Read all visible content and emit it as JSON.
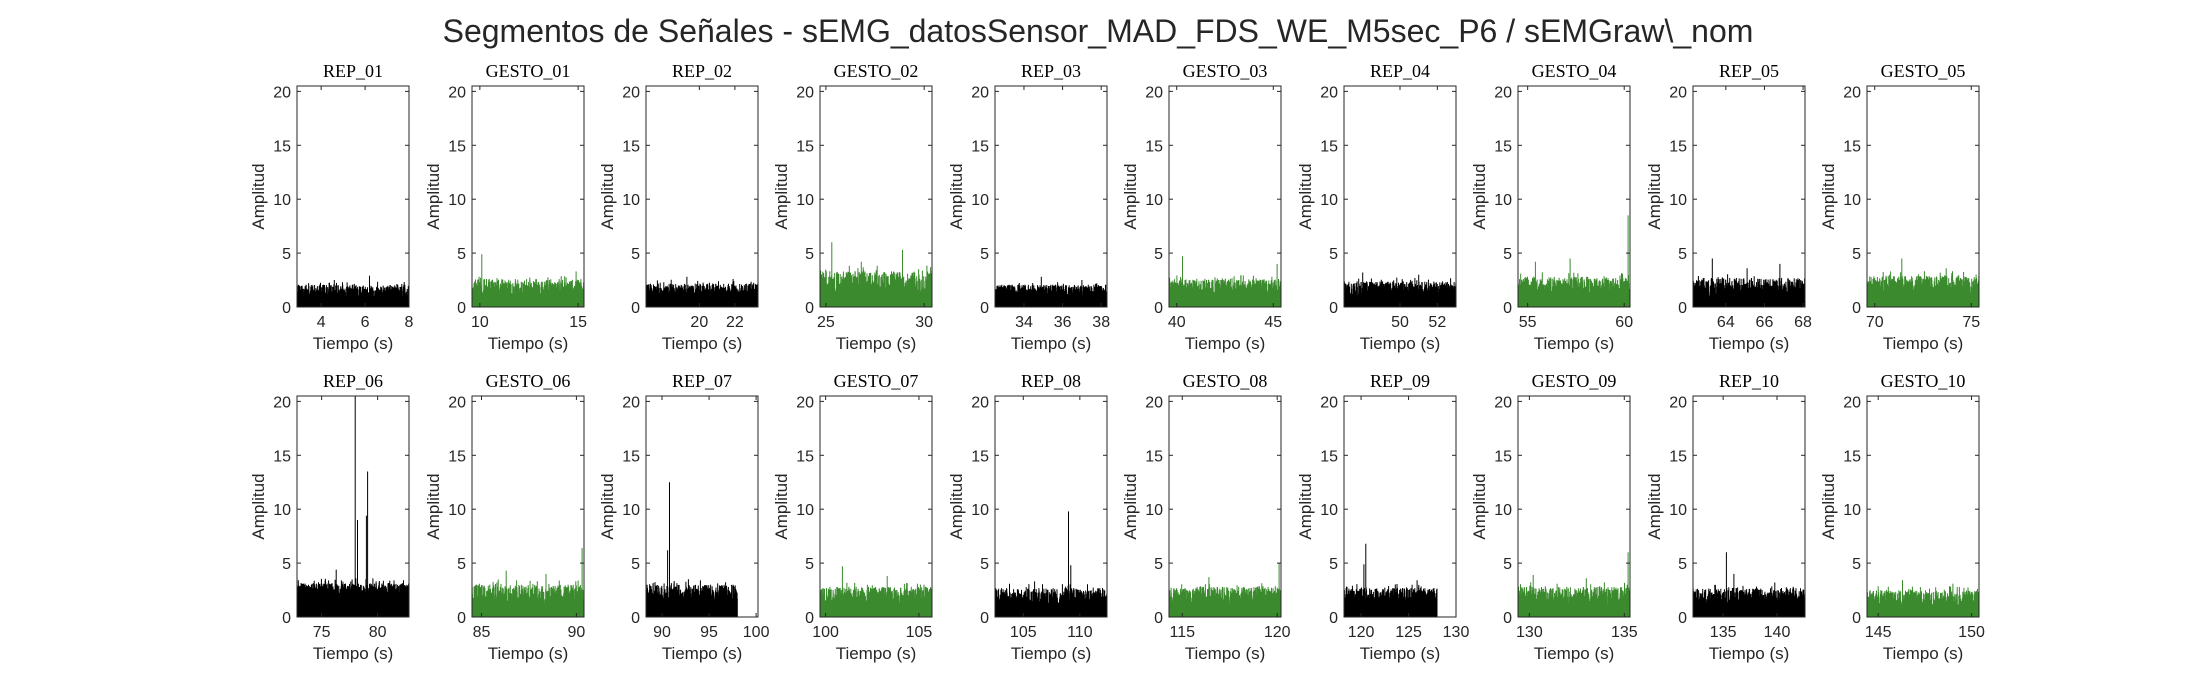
{
  "figure": {
    "title": "Segmentos de Señales - sEMG_datosSensor_MAD_FDS_WE_M5sec_P6 / sEMGraw\\_nom"
  },
  "colors": {
    "rep": "#000000",
    "gesto": "#3b8a2e",
    "axis": "#262626"
  },
  "chart_data": [
    {
      "type": "line",
      "title": "REP_01",
      "xlabel": "Tiempo (s)",
      "ylabel": "Amplitud",
      "xlim": [
        2.9,
        8.0
      ],
      "ylim": [
        0,
        20.5
      ],
      "xticks": [
        4,
        6,
        8
      ],
      "yticks": [
        0,
        5,
        10,
        15,
        20
      ],
      "color": "#000000",
      "sampling_step": 0.01,
      "signal": {
        "base": 1.3,
        "noise": 0.7,
        "end": 8.0,
        "spikes": [
          [
            6.2,
            2.9
          ],
          [
            4.6,
            2.5
          ]
        ]
      }
    },
    {
      "type": "line",
      "title": "GESTO_01",
      "xlabel": "Tiempo (s)",
      "ylabel": "Amplitud",
      "xlim": [
        9.6,
        15.3
      ],
      "ylim": [
        0,
        20.5
      ],
      "xticks": [
        10,
        15
      ],
      "yticks": [
        0,
        5,
        10,
        15,
        20
      ],
      "color": "#3b8a2e",
      "sampling_step": 0.01,
      "signal": {
        "base": 1.6,
        "noise": 0.9,
        "end": 15.3,
        "spikes": [
          [
            10.1,
            4.9
          ],
          [
            14.9,
            3.3
          ]
        ]
      }
    },
    {
      "type": "line",
      "title": "REP_02",
      "xlabel": "Tiempo (s)",
      "ylabel": "Amplitud",
      "xlim": [
        17.0,
        23.3
      ],
      "ylim": [
        0,
        20.5
      ],
      "xticks": [
        20,
        22
      ],
      "yticks": [
        0,
        5,
        10,
        15,
        20
      ],
      "color": "#000000",
      "sampling_step": 0.01,
      "signal": {
        "base": 1.3,
        "noise": 0.8,
        "end": 23.3,
        "spikes": [
          [
            19.3,
            2.8
          ],
          [
            21.9,
            2.6
          ]
        ]
      }
    },
    {
      "type": "line",
      "title": "GESTO_02",
      "xlabel": "Tiempo (s)",
      "ylabel": "Amplitud",
      "xlim": [
        24.7,
        30.4
      ],
      "ylim": [
        0,
        20.5
      ],
      "xticks": [
        25,
        30
      ],
      "yticks": [
        0,
        5,
        10,
        15,
        20
      ],
      "color": "#3b8a2e",
      "sampling_step": 0.01,
      "signal": {
        "base": 2.0,
        "noise": 1.2,
        "end": 30.4,
        "spikes": [
          [
            25.3,
            6.0
          ],
          [
            28.9,
            5.3
          ],
          [
            26.8,
            4.2
          ]
        ]
      }
    },
    {
      "type": "line",
      "title": "REP_03",
      "xlabel": "Tiempo (s)",
      "ylabel": "Amplitud",
      "xlim": [
        32.5,
        38.3
      ],
      "ylim": [
        0,
        20.5
      ],
      "xticks": [
        34,
        36,
        38
      ],
      "yticks": [
        0,
        5,
        10,
        15,
        20
      ],
      "color": "#000000",
      "sampling_step": 0.01,
      "signal": {
        "base": 1.3,
        "noise": 0.7,
        "end": 38.3,
        "spikes": [
          [
            34.9,
            2.8
          ],
          [
            37.0,
            2.5
          ]
        ]
      }
    },
    {
      "type": "line",
      "title": "GESTO_03",
      "xlabel": "Tiempo (s)",
      "ylabel": "Amplitud",
      "xlim": [
        39.6,
        45.4
      ],
      "ylim": [
        0,
        20.5
      ],
      "xticks": [
        40,
        45
      ],
      "yticks": [
        0,
        5,
        10,
        15,
        20
      ],
      "color": "#3b8a2e",
      "sampling_step": 0.01,
      "signal": {
        "base": 1.6,
        "noise": 0.9,
        "end": 45.4,
        "spikes": [
          [
            40.3,
            4.7
          ],
          [
            45.2,
            4.0
          ]
        ]
      }
    },
    {
      "type": "line",
      "title": "REP_04",
      "xlabel": "Tiempo (s)",
      "ylabel": "Amplitud",
      "xlim": [
        47.0,
        53.0
      ],
      "ylim": [
        0,
        20.5
      ],
      "xticks": [
        50,
        52
      ],
      "yticks": [
        0,
        5,
        10,
        15,
        20
      ],
      "color": "#000000",
      "sampling_step": 0.01,
      "signal": {
        "base": 1.5,
        "noise": 0.8,
        "end": 53.0,
        "spikes": [
          [
            48.0,
            3.2
          ],
          [
            51.0,
            3.0
          ]
        ]
      }
    },
    {
      "type": "line",
      "title": "GESTO_04",
      "xlabel": "Tiempo (s)",
      "ylabel": "Amplitud",
      "xlim": [
        54.5,
        60.3
      ],
      "ylim": [
        0,
        20.5
      ],
      "xticks": [
        55,
        60
      ],
      "yticks": [
        0,
        5,
        10,
        15,
        20
      ],
      "color": "#3b8a2e",
      "sampling_step": 0.01,
      "signal": {
        "base": 1.7,
        "noise": 1.0,
        "end": 60.3,
        "spikes": [
          [
            60.2,
            8.5
          ],
          [
            57.2,
            4.5
          ],
          [
            55.4,
            4.2
          ]
        ]
      }
    },
    {
      "type": "line",
      "title": "REP_05",
      "xlabel": "Tiempo (s)",
      "ylabel": "Amplitud",
      "xlim": [
        62.3,
        68.1
      ],
      "ylim": [
        0,
        20.5
      ],
      "xticks": [
        64,
        66,
        68
      ],
      "yticks": [
        0,
        5,
        10,
        15,
        20
      ],
      "color": "#000000",
      "sampling_step": 0.01,
      "signal": {
        "base": 1.6,
        "noise": 1.0,
        "end": 68.1,
        "spikes": [
          [
            63.3,
            4.5
          ],
          [
            66.8,
            4.0
          ],
          [
            65.1,
            3.6
          ]
        ]
      }
    },
    {
      "type": "line",
      "title": "GESTO_05",
      "xlabel": "Tiempo (s)",
      "ylabel": "Amplitud",
      "xlim": [
        69.6,
        75.4
      ],
      "ylim": [
        0,
        20.5
      ],
      "xticks": [
        70,
        75
      ],
      "yticks": [
        0,
        5,
        10,
        15,
        20
      ],
      "color": "#3b8a2e",
      "sampling_step": 0.01,
      "signal": {
        "base": 1.8,
        "noise": 1.0,
        "end": 75.4,
        "spikes": [
          [
            71.4,
            4.5
          ],
          [
            73.7,
            3.6
          ]
        ]
      }
    },
    {
      "type": "line",
      "title": "REP_06",
      "xlabel": "Tiempo (s)",
      "ylabel": "Amplitud",
      "xlim": [
        72.8,
        82.8
      ],
      "ylim": [
        0,
        20.5
      ],
      "xticks": [
        75,
        80
      ],
      "yticks": [
        0,
        5,
        10,
        15,
        20
      ],
      "color": "#000000",
      "sampling_step": 0.01,
      "signal": {
        "base": 1.9,
        "noise": 1.1,
        "end": 82.8,
        "spikes": [
          [
            78.0,
            20.5
          ],
          [
            79.1,
            13.5
          ],
          [
            78.2,
            9.0
          ],
          [
            79.0,
            9.4
          ],
          [
            76.3,
            4.4
          ]
        ]
      }
    },
    {
      "type": "line",
      "title": "GESTO_06",
      "xlabel": "Tiempo (s)",
      "ylabel": "Amplitud",
      "xlim": [
        84.5,
        90.4
      ],
      "ylim": [
        0,
        20.5
      ],
      "xticks": [
        85,
        90
      ],
      "yticks": [
        0,
        5,
        10,
        15,
        20
      ],
      "color": "#3b8a2e",
      "sampling_step": 0.01,
      "signal": {
        "base": 1.8,
        "noise": 1.1,
        "end": 90.4,
        "spikes": [
          [
            90.3,
            6.4
          ],
          [
            86.3,
            4.3
          ],
          [
            88.4,
            4.0
          ]
        ]
      }
    },
    {
      "type": "line",
      "title": "REP_07",
      "xlabel": "Tiempo (s)",
      "ylabel": "Amplitud",
      "xlim": [
        88.3,
        100.2
      ],
      "ylim": [
        0,
        20.5
      ],
      "xticks": [
        90,
        95,
        100
      ],
      "yticks": [
        0,
        5,
        10,
        15,
        20
      ],
      "color": "#000000",
      "sampling_step": 0.02,
      "signal": {
        "base": 1.9,
        "noise": 1.0,
        "end": 98.0,
        "spikes": [
          [
            90.8,
            12.5
          ],
          [
            90.6,
            6.2
          ],
          [
            92.8,
            3.5
          ]
        ]
      }
    },
    {
      "type": "line",
      "title": "GESTO_07",
      "xlabel": "Tiempo (s)",
      "ylabel": "Amplitud",
      "xlim": [
        99.7,
        105.7
      ],
      "ylim": [
        0,
        20.5
      ],
      "xticks": [
        100,
        105
      ],
      "yticks": [
        0,
        5,
        10,
        15,
        20
      ],
      "color": "#3b8a2e",
      "sampling_step": 0.01,
      "signal": {
        "base": 1.7,
        "noise": 1.0,
        "end": 105.7,
        "spikes": [
          [
            100.9,
            4.7
          ],
          [
            103.3,
            3.8
          ]
        ]
      }
    },
    {
      "type": "line",
      "title": "REP_08",
      "xlabel": "Tiempo (s)",
      "ylabel": "Amplitud",
      "xlim": [
        102.5,
        112.4
      ],
      "ylim": [
        0,
        20.5
      ],
      "xticks": [
        105,
        110
      ],
      "yticks": [
        0,
        5,
        10,
        15,
        20
      ],
      "color": "#000000",
      "sampling_step": 0.02,
      "signal": {
        "base": 1.7,
        "noise": 0.9,
        "end": 112.4,
        "spikes": [
          [
            109.0,
            9.8
          ],
          [
            109.2,
            4.8
          ],
          [
            106.0,
            3.3
          ]
        ]
      }
    },
    {
      "type": "line",
      "title": "GESTO_08",
      "xlabel": "Tiempo (s)",
      "ylabel": "Amplitud",
      "xlim": [
        114.3,
        120.2
      ],
      "ylim": [
        0,
        20.5
      ],
      "xticks": [
        115,
        120
      ],
      "yticks": [
        0,
        5,
        10,
        15,
        20
      ],
      "color": "#3b8a2e",
      "sampling_step": 0.01,
      "signal": {
        "base": 1.7,
        "noise": 1.0,
        "end": 120.2,
        "spikes": [
          [
            120.1,
            5.0
          ],
          [
            116.4,
            3.7
          ]
        ]
      }
    },
    {
      "type": "line",
      "title": "REP_09",
      "xlabel": "Tiempo (s)",
      "ylabel": "Amplitud",
      "xlim": [
        118.2,
        130.0
      ],
      "ylim": [
        0,
        20.5
      ],
      "xticks": [
        120,
        125,
        130
      ],
      "yticks": [
        0,
        5,
        10,
        15,
        20
      ],
      "color": "#000000",
      "sampling_step": 0.02,
      "signal": {
        "base": 1.7,
        "noise": 0.9,
        "end": 128.0,
        "spikes": [
          [
            120.5,
            6.8
          ],
          [
            120.3,
            4.9
          ],
          [
            125.9,
            3.4
          ]
        ]
      }
    },
    {
      "type": "line",
      "title": "GESTO_09",
      "xlabel": "Tiempo (s)",
      "ylabel": "Amplitud",
      "xlim": [
        129.4,
        135.3
      ],
      "ylim": [
        0,
        20.5
      ],
      "xticks": [
        130,
        135
      ],
      "yticks": [
        0,
        5,
        10,
        15,
        20
      ],
      "color": "#3b8a2e",
      "sampling_step": 0.01,
      "signal": {
        "base": 1.7,
        "noise": 1.0,
        "end": 135.3,
        "spikes": [
          [
            135.2,
            6.0
          ],
          [
            130.2,
            3.9
          ],
          [
            133.0,
            3.6
          ]
        ]
      }
    },
    {
      "type": "line",
      "title": "REP_10",
      "xlabel": "Tiempo (s)",
      "ylabel": "Amplitud",
      "xlim": [
        132.2,
        142.6
      ],
      "ylim": [
        0,
        20.5
      ],
      "xticks": [
        135,
        140
      ],
      "yticks": [
        0,
        5,
        10,
        15,
        20
      ],
      "color": "#000000",
      "sampling_step": 0.02,
      "signal": {
        "base": 1.7,
        "noise": 0.9,
        "end": 142.6,
        "spikes": [
          [
            135.3,
            6.0
          ],
          [
            136.0,
            4.0
          ],
          [
            139.8,
            3.2
          ]
        ]
      }
    },
    {
      "type": "line",
      "title": "GESTO_10",
      "xlabel": "Tiempo (s)",
      "ylabel": "Amplitud",
      "xlim": [
        144.4,
        150.4
      ],
      "ylim": [
        0,
        20.5
      ],
      "xticks": [
        145,
        150
      ],
      "yticks": [
        0,
        5,
        10,
        15,
        20
      ],
      "color": "#3b8a2e",
      "sampling_step": 0.01,
      "signal": {
        "base": 1.5,
        "noise": 0.9,
        "end": 150.4,
        "spikes": [
          [
            146.3,
            3.4
          ],
          [
            149.0,
            3.1
          ]
        ]
      }
    }
  ]
}
